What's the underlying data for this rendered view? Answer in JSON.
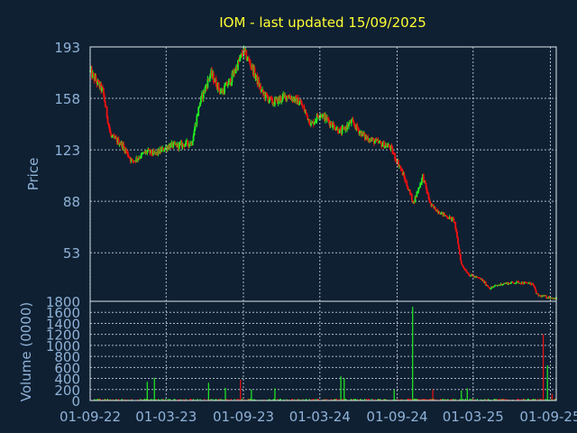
{
  "chart_data": {
    "type": "candlestick",
    "title": "IOM - last updated 15/09/2025",
    "colors": {
      "background": "#0f2032",
      "up": "#22ee22",
      "down": "#ee1111",
      "text": "#8fb2d8",
      "title": "#ffff33",
      "grid": "#c8d6e4"
    },
    "grid": true,
    "price_panel": {
      "ylabel": "Price",
      "ylim": [
        20,
        193
      ],
      "yticks": [
        "193",
        "158",
        "123",
        "88",
        "53"
      ],
      "ytick_values": [
        193,
        158,
        123,
        88,
        53
      ],
      "series_trend": [
        {
          "x": "2022-09-01",
          "y": 176
        },
        {
          "x": "2022-10-01",
          "y": 163
        },
        {
          "x": "2022-10-20",
          "y": 132
        },
        {
          "x": "2022-11-15",
          "y": 127
        },
        {
          "x": "2022-12-10",
          "y": 115
        },
        {
          "x": "2023-01-15",
          "y": 122
        },
        {
          "x": "2023-02-01",
          "y": 120
        },
        {
          "x": "2023-03-10",
          "y": 126
        },
        {
          "x": "2023-04-01",
          "y": 126
        },
        {
          "x": "2023-05-01",
          "y": 128
        },
        {
          "x": "2023-05-20",
          "y": 155
        },
        {
          "x": "2023-06-15",
          "y": 175
        },
        {
          "x": "2023-07-10",
          "y": 162
        },
        {
          "x": "2023-08-01",
          "y": 170
        },
        {
          "x": "2023-09-01",
          "y": 190
        },
        {
          "x": "2023-09-20",
          "y": 180
        },
        {
          "x": "2023-10-15",
          "y": 162
        },
        {
          "x": "2023-11-10",
          "y": 155
        },
        {
          "x": "2023-12-15",
          "y": 160
        },
        {
          "x": "2024-01-15",
          "y": 155
        },
        {
          "x": "2024-02-10",
          "y": 140
        },
        {
          "x": "2024-03-01",
          "y": 148
        },
        {
          "x": "2024-04-01",
          "y": 140
        },
        {
          "x": "2024-04-20",
          "y": 135
        },
        {
          "x": "2024-05-15",
          "y": 142
        },
        {
          "x": "2024-06-15",
          "y": 132
        },
        {
          "x": "2024-07-15",
          "y": 128
        },
        {
          "x": "2024-08-15",
          "y": 125
        },
        {
          "x": "2024-09-10",
          "y": 110
        },
        {
          "x": "2024-10-10",
          "y": 87
        },
        {
          "x": "2024-11-01",
          "y": 105
        },
        {
          "x": "2024-11-20",
          "y": 85
        },
        {
          "x": "2024-12-20",
          "y": 79
        },
        {
          "x": "2025-01-15",
          "y": 75
        },
        {
          "x": "2025-02-01",
          "y": 45
        },
        {
          "x": "2025-02-20",
          "y": 38
        },
        {
          "x": "2025-03-20",
          "y": 35
        },
        {
          "x": "2025-04-10",
          "y": 29
        },
        {
          "x": "2025-05-10",
          "y": 32
        },
        {
          "x": "2025-06-15",
          "y": 33
        },
        {
          "x": "2025-07-20",
          "y": 32
        },
        {
          "x": "2025-08-01",
          "y": 24
        },
        {
          "x": "2025-09-15",
          "y": 22
        }
      ]
    },
    "volume_panel": {
      "ylabel": "Volume (0000)",
      "ylim": [
        0,
        1800
      ],
      "yticks": [
        "1800",
        "1600",
        "1400",
        "1200",
        "1000",
        "800",
        "600",
        "400",
        "200",
        "0"
      ],
      "ytick_values": [
        1800,
        1600,
        1400,
        1200,
        1000,
        800,
        600,
        400,
        200,
        0
      ],
      "spikes": [
        {
          "x": "2023-01-15",
          "y": 340,
          "dir": "up"
        },
        {
          "x": "2023-02-01",
          "y": 410,
          "dir": "up"
        },
        {
          "x": "2023-06-10",
          "y": 320,
          "dir": "up"
        },
        {
          "x": "2023-07-20",
          "y": 230,
          "dir": "up"
        },
        {
          "x": "2023-08-25",
          "y": 380,
          "dir": "down"
        },
        {
          "x": "2023-09-20",
          "y": 200,
          "dir": "up"
        },
        {
          "x": "2023-11-15",
          "y": 220,
          "dir": "up"
        },
        {
          "x": "2024-04-20",
          "y": 440,
          "dir": "up"
        },
        {
          "x": "2024-04-28",
          "y": 400,
          "dir": "up"
        },
        {
          "x": "2024-08-25",
          "y": 190,
          "dir": "up"
        },
        {
          "x": "2024-10-08",
          "y": 1700,
          "dir": "up"
        },
        {
          "x": "2024-11-25",
          "y": 200,
          "dir": "down"
        },
        {
          "x": "2025-02-01",
          "y": 180,
          "dir": "up"
        },
        {
          "x": "2025-02-15",
          "y": 220,
          "dir": "up"
        },
        {
          "x": "2025-08-15",
          "y": 1200,
          "dir": "down"
        },
        {
          "x": "2025-08-25",
          "y": 640,
          "dir": "up"
        },
        {
          "x": "2025-09-05",
          "y": 120,
          "dir": "down"
        }
      ]
    },
    "x_axis": {
      "ticks": [
        "01-09-22",
        "01-03-23",
        "01-09-23",
        "01-03-24",
        "01-09-24",
        "01-03-25",
        "01-09-25"
      ],
      "tick_dates": [
        "2022-09-01",
        "2023-03-01",
        "2023-09-01",
        "2024-03-01",
        "2024-09-01",
        "2025-03-01",
        "2025-09-01"
      ],
      "range": [
        "2022-09-01",
        "2025-09-15"
      ]
    }
  }
}
